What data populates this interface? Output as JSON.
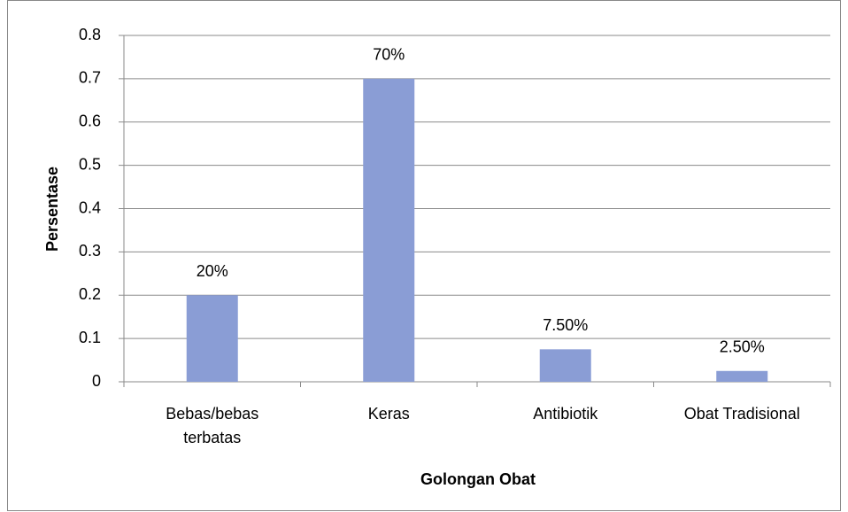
{
  "chart_data": {
    "type": "bar",
    "categories": [
      "Bebas/bebas terbatas",
      "Keras",
      "Antibiotik",
      "Obat Tradisional"
    ],
    "values": [
      0.2,
      0.7,
      0.075,
      0.025
    ],
    "value_labels": [
      "20%",
      "70%",
      "7.50%",
      "2.50%"
    ],
    "color": "#8a9dd5",
    "ylim": [
      0,
      0.8
    ],
    "yticks": [
      0,
      0.1,
      0.2,
      0.3,
      0.4,
      0.5,
      0.6,
      0.7,
      0.8
    ],
    "grid": true,
    "x_label": "Golongan Obat",
    "y_label": "Persentase"
  }
}
